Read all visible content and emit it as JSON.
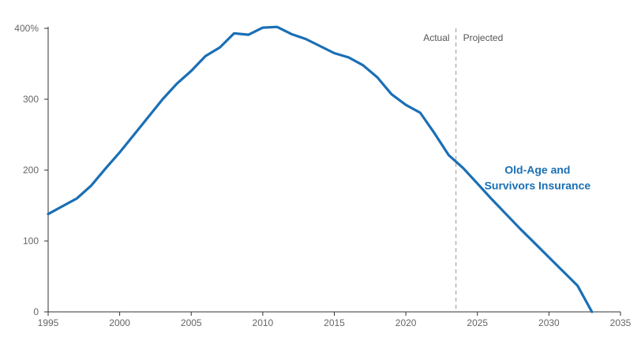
{
  "chart_data": {
    "type": "line",
    "title": "",
    "xlabel": "",
    "ylabel": "",
    "xlim": [
      1995,
      2035
    ],
    "ylim": [
      0,
      400
    ],
    "x_ticks": [
      1995,
      2000,
      2005,
      2010,
      2015,
      2020,
      2025,
      2030,
      2035
    ],
    "x_tick_labels": [
      "1995",
      "2000",
      "2005",
      "2010",
      "2015",
      "2020",
      "2025",
      "2030",
      "2035"
    ],
    "y_ticks": [
      0,
      100,
      200,
      300,
      400
    ],
    "y_tick_labels": [
      "0",
      "100",
      "200",
      "300",
      "400%"
    ],
    "grid": false,
    "divider": {
      "x": 2023.5,
      "left_label": "Actual",
      "right_label": "Projected"
    },
    "series": [
      {
        "name": "",
        "label_lines": [
          "Old-Age and",
          "Survivors Insurance"
        ],
        "label_anchor": [
          2029.2,
          195
        ],
        "color": "#1a6fb5",
        "x": [
          1995,
          1996,
          1997,
          1998,
          1999,
          2000,
          2001,
          2002,
          2003,
          2004,
          2005,
          2006,
          2007,
          2008,
          2009,
          2010,
          2011,
          2012,
          2013,
          2014,
          2015,
          2016,
          2017,
          2018,
          2019,
          2020,
          2021,
          2022,
          2023,
          2024,
          2025,
          2026,
          2027,
          2028,
          2029,
          2030,
          2031,
          2032,
          2033
        ],
        "y": [
          138,
          149,
          160,
          178,
          202,
          225,
          250,
          275,
          300,
          322,
          340,
          361,
          373,
          393,
          391,
          401,
          402,
          392,
          385,
          375,
          365,
          359,
          348,
          331,
          307,
          292,
          281,
          252,
          221,
          203,
          181,
          159,
          138,
          117,
          97,
          77,
          57,
          37,
          0
        ]
      }
    ]
  }
}
